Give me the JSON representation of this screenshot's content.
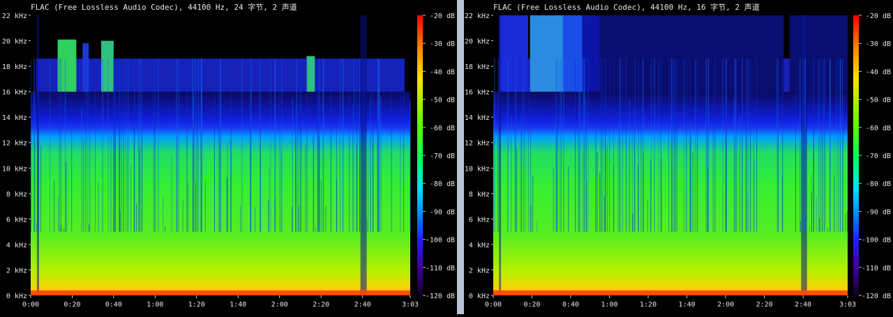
{
  "panels": [
    {
      "title": "FLAC (Free Lossless Audio Codec), 44100 Hz, 24 字节, 2 声道",
      "variant": "24bit"
    },
    {
      "title": "FLAC (Free Lossless Audio Codec), 44100 Hz, 16 字节, 2 声道",
      "variant": "16bit"
    }
  ],
  "chart_data": [
    {
      "type": "heatmap",
      "title": "FLAC (Free Lossless Audio Codec), 44100 Hz, 24 字节, 2 声道",
      "x_ticks": [
        "0:00",
        "0:20",
        "0:40",
        "1:00",
        "1:20",
        "1:40",
        "2:00",
        "2:20",
        "2:40",
        "3:03"
      ],
      "x_range_seconds": [
        0,
        183
      ],
      "y_ticks": [
        "0 kHz",
        "2 kHz",
        "4 kHz",
        "6 kHz",
        "8 kHz",
        "10 kHz",
        "12 kHz",
        "14 kHz",
        "16 kHz",
        "18 kHz",
        "20 kHz",
        "22 kHz"
      ],
      "y_range_khz": [
        0,
        22
      ],
      "colorbar_ticks": [
        "-20 dB",
        "-30 dB",
        "-40 dB",
        "-50 dB",
        "-60 dB",
        "-70 dB",
        "-80 dB",
        "-90 dB",
        "-100 dB",
        "-110 dB",
        "-120 dB"
      ],
      "colorbar_range_db": [
        -120,
        -20
      ],
      "colors": {
        "high": "#ff1a00",
        "mid_high": "#ffd000",
        "mid": "#33ee33",
        "mid_low": "#00a0ff",
        "low": "#1020e0",
        "floor": "#000000"
      }
    },
    {
      "type": "heatmap",
      "title": "FLAC (Free Lossless Audio Codec), 44100 Hz, 16 字节, 2 声道",
      "x_ticks": [
        "0:00",
        "0:20",
        "0:40",
        "1:00",
        "1:20",
        "1:40",
        "2:00",
        "2:20",
        "2:40",
        "3:03"
      ],
      "x_range_seconds": [
        0,
        183
      ],
      "y_ticks": [
        "0 kHz",
        "2 kHz",
        "4 kHz",
        "6 kHz",
        "8 kHz",
        "10 kHz",
        "12 kHz",
        "14 kHz",
        "16 kHz",
        "18 kHz",
        "20 kHz",
        "22 kHz"
      ],
      "y_range_khz": [
        0,
        22
      ],
      "colorbar_ticks": [
        "-20 dB",
        "-30 dB",
        "-40 dB",
        "-50 dB",
        "-60 dB",
        "-70 dB",
        "-80 dB",
        "-90 dB",
        "-100 dB",
        "-110 dB",
        "-120 dB"
      ],
      "colorbar_range_db": [
        -120,
        -20
      ],
      "colors": {
        "high": "#ff1a00",
        "mid_high": "#ffd000",
        "mid": "#33ee33",
        "mid_low": "#00a0ff",
        "low": "#1020e0",
        "floor": "#000000"
      }
    }
  ]
}
